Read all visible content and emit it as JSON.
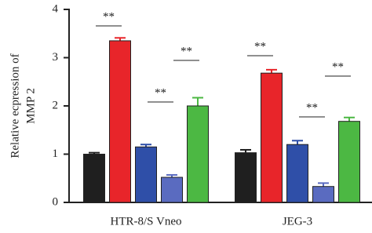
{
  "chart_data": {
    "type": "bar",
    "ylabel": [
      "Relative ecpression of",
      "MMP 2"
    ],
    "categories": [
      "HTR-8/S Vneo",
      "JEG-3"
    ],
    "series": [
      {
        "color": "#1f1f1f",
        "values": [
          1.0,
          1.03
        ],
        "errors": [
          0.03,
          0.06
        ]
      },
      {
        "color": "#e8252a",
        "values": [
          3.35,
          2.68
        ],
        "errors": [
          0.06,
          0.07
        ]
      },
      {
        "color": "#2f4fa8",
        "values": [
          1.15,
          1.2
        ],
        "errors": [
          0.05,
          0.08
        ]
      },
      {
        "color": "#5a6bc0",
        "values": [
          0.52,
          0.33
        ],
        "errors": [
          0.05,
          0.07
        ]
      },
      {
        "color": "#4cb843",
        "values": [
          2.0,
          1.68
        ],
        "errors": [
          0.17,
          0.08
        ]
      }
    ],
    "annotations": [
      "**",
      "**",
      "**",
      "**",
      "**",
      "**"
    ],
    "ylim": [
      0,
      4
    ],
    "yticks": [
      0,
      1,
      2,
      3,
      4
    ]
  }
}
